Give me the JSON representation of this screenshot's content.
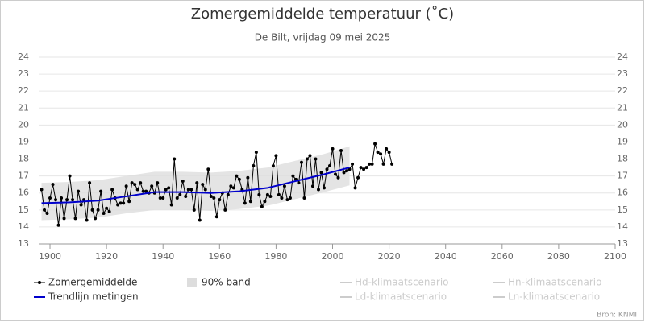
{
  "chart_data": {
    "type": "line",
    "title": "Zomergemiddelde temperatuur (˚C)",
    "subtitle": "De Bilt, vrijdag 09 mei 2025",
    "source": "Bron: KNMI",
    "xlim": [
      1896,
      2100
    ],
    "xticks": [
      1900,
      1920,
      1940,
      1960,
      1980,
      2000,
      2020,
      2040,
      2060,
      2080,
      2100
    ],
    "ylim": [
      13,
      24
    ],
    "yticks": [
      13,
      14,
      15,
      16,
      17,
      18,
      19,
      20,
      21,
      22,
      23,
      24
    ],
    "y2lim": [
      13,
      24
    ],
    "y2ticks": [
      13,
      14,
      15,
      16,
      17,
      18,
      19,
      20,
      21,
      22,
      23,
      24
    ],
    "grid": true,
    "x": [
      1897,
      1898,
      1899,
      1900,
      1901,
      1902,
      1903,
      1904,
      1905,
      1906,
      1907,
      1908,
      1909,
      1910,
      1911,
      1912,
      1913,
      1914,
      1915,
      1916,
      1917,
      1918,
      1919,
      1920,
      1921,
      1922,
      1923,
      1924,
      1925,
      1926,
      1927,
      1928,
      1929,
      1930,
      1931,
      1932,
      1933,
      1934,
      1935,
      1936,
      1937,
      1938,
      1939,
      1940,
      1941,
      1942,
      1943,
      1944,
      1945,
      1946,
      1947,
      1948,
      1949,
      1950,
      1951,
      1952,
      1953,
      1954,
      1955,
      1956,
      1957,
      1958,
      1959,
      1960,
      1961,
      1962,
      1963,
      1964,
      1965,
      1966,
      1967,
      1968,
      1969,
      1970,
      1971,
      1972,
      1973,
      1974,
      1975,
      1976,
      1977,
      1978,
      1979,
      1980,
      1981,
      1982,
      1983,
      1984,
      1985,
      1986,
      1987,
      1988,
      1989,
      1990,
      1991,
      1992,
      1993,
      1994,
      1995,
      1996,
      1997,
      1998,
      1999,
      2000,
      2001,
      2002,
      2003,
      2004,
      2005,
      2006,
      2007,
      2008,
      2009,
      2010,
      2011,
      2012,
      2013,
      2014,
      2015,
      2016,
      2017,
      2018,
      2019,
      2020,
      2021
    ],
    "series": [
      {
        "name": "Zomergemiddelde",
        "color": "#000000",
        "values": [
          16.2,
          15.0,
          14.8,
          15.7,
          16.5,
          15.6,
          14.1,
          15.7,
          14.5,
          15.6,
          17.0,
          15.6,
          14.5,
          16.1,
          15.3,
          15.6,
          14.4,
          16.6,
          15.0,
          14.5,
          15.0,
          16.1,
          14.8,
          15.1,
          14.9,
          16.2,
          15.7,
          15.3,
          15.4,
          15.4,
          16.4,
          15.5,
          16.6,
          16.5,
          16.2,
          16.6,
          16.1,
          16.1,
          16.0,
          16.4,
          16.0,
          16.6,
          15.7,
          15.7,
          16.2,
          16.3,
          15.3,
          18.0,
          15.7,
          15.9,
          16.7,
          15.8,
          16.2,
          16.2,
          15.0,
          16.6,
          14.4,
          16.5,
          16.2,
          17.4,
          15.8,
          15.7,
          14.6,
          15.6,
          16.0,
          15.0,
          15.9,
          16.4,
          16.3,
          17.0,
          16.8,
          16.2,
          15.4,
          16.9,
          15.5,
          17.6,
          18.4,
          15.9,
          15.2,
          15.5,
          15.9,
          15.8,
          17.6,
          18.2,
          15.9,
          15.7,
          16.4,
          15.6,
          15.7,
          17.0,
          16.8,
          16.6,
          17.8,
          15.7,
          18.0,
          18.2,
          16.4,
          18.0,
          16.2,
          17.2,
          16.3,
          17.4,
          17.6,
          18.6,
          17.1,
          16.9,
          18.5,
          17.2,
          17.3,
          17.4,
          17.7,
          16.3,
          16.9,
          17.5,
          17.4,
          17.5,
          17.7,
          17.7,
          18.9,
          18.4,
          18.3,
          17.7,
          18.6,
          18.4,
          17.7
        ]
      }
    ],
    "trend": {
      "name": "Trendlijn metingen",
      "color": "#0000cc",
      "x": [
        1897,
        1907,
        1917,
        1927,
        1937,
        1947,
        1957,
        1967,
        1977,
        1987,
        1997,
        2006
      ],
      "values": [
        15.4,
        15.45,
        15.55,
        15.8,
        16.05,
        16.05,
        16.0,
        16.1,
        16.3,
        16.7,
        17.1,
        17.5
      ]
    },
    "band": {
      "name": "90% band",
      "color": "#dddddd",
      "x": [
        1897,
        1907,
        1917,
        1927,
        1937,
        1947,
        1957,
        1967,
        1977,
        1987,
        1997,
        2006
      ],
      "lower": [
        14.4,
        14.45,
        14.55,
        14.8,
        15.0,
        15.0,
        14.95,
        15.05,
        15.25,
        15.65,
        16.05,
        16.45
      ],
      "upper": [
        16.6,
        16.65,
        16.75,
        17.0,
        17.25,
        17.25,
        17.2,
        17.3,
        17.5,
        17.9,
        18.3,
        18.75
      ]
    },
    "legend_hidden": [
      "Hd-klimaatscenario",
      "Hn-klimaatscenario",
      "Ld-klimaatscenario",
      "Ln-klimaatscenario"
    ]
  }
}
